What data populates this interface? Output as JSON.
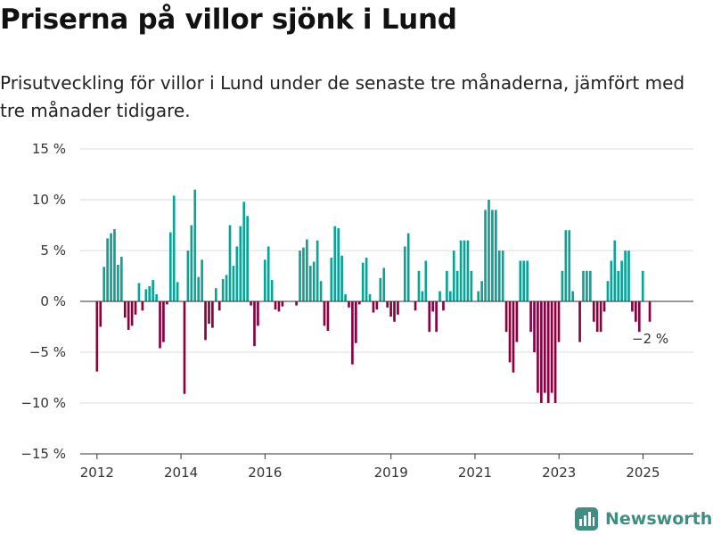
{
  "title": "Priserna på villor sjönk i Lund",
  "subtitle": "Prisutveckling för villor i Lund under de senaste tre månaderna, jämfört med tre månader tidigare.",
  "brand": "Newsworthy",
  "colors": {
    "positive": "#0aa396",
    "negative": "#8c0040",
    "brand": "#3e8e84"
  },
  "chart_data": {
    "type": "bar",
    "unit": "%",
    "ylim": [
      -15,
      15
    ],
    "yticks": [
      {
        "value": 15,
        "label": "15 %"
      },
      {
        "value": 10,
        "label": "10 %"
      },
      {
        "value": 5,
        "label": "5 %"
      },
      {
        "value": 0,
        "label": "0 %"
      },
      {
        "value": -5,
        "label": "−5 %"
      },
      {
        "value": -10,
        "label": "−10 %"
      },
      {
        "value": -15,
        "label": "−15 %"
      }
    ],
    "xlim": [
      2011.6,
      2026.2
    ],
    "xticks": [
      {
        "value": 2012,
        "label": "2012"
      },
      {
        "value": 2014,
        "label": "2014"
      },
      {
        "value": 2016,
        "label": "2016"
      },
      {
        "value": 2019,
        "label": "2019"
      },
      {
        "value": 2021,
        "label": "2021"
      },
      {
        "value": 2023,
        "label": "2023"
      },
      {
        "value": 2025,
        "label": "2025"
      }
    ],
    "grid": true,
    "legend": "none",
    "start": 2012.0,
    "step": 0.0833,
    "values": [
      -6.9,
      -2.5,
      3.4,
      6.2,
      6.7,
      7.1,
      3.6,
      4.4,
      -1.6,
      -2.8,
      -2.4,
      -1.3,
      1.8,
      -0.9,
      1.2,
      1.5,
      2.1,
      0.7,
      -4.6,
      -4.0,
      -0.3,
      6.8,
      10.4,
      1.9,
      0,
      -9.1,
      5.0,
      7.5,
      11.0,
      2.4,
      4.1,
      -3.8,
      -2.2,
      -2.6,
      1.3,
      -0.9,
      2.2,
      2.6,
      7.5,
      3.5,
      5.4,
      7.4,
      9.8,
      8.4,
      -0.4,
      -4.4,
      -2.4,
      0,
      4.1,
      5.4,
      2.1,
      -0.8,
      -1.0,
      -0.5,
      0,
      0,
      0,
      -0.4,
      5.0,
      5.3,
      6.1,
      3.5,
      3.9,
      6.0,
      2.0,
      -2.4,
      -2.9,
      4.3,
      7.4,
      7.2,
      4.5,
      0.7,
      -0.6,
      -6.2,
      -4.1,
      -0.3,
      3.8,
      4.3,
      0.7,
      -1.1,
      -0.8,
      2.3,
      3.3,
      -0.6,
      -1.5,
      -2.0,
      -1.3,
      0,
      5.4,
      6.7,
      0,
      -0.9,
      3.0,
      1.0,
      4.0,
      -3.0,
      -1.0,
      -3.0,
      1.0,
      -0.9,
      3.0,
      1.0,
      5.0,
      3.0,
      6.0,
      6.0,
      6.0,
      3.0,
      0,
      1.0,
      2.0,
      9.0,
      10.0,
      9.0,
      9.0,
      5.0,
      5.0,
      -3.0,
      -6.0,
      -7.0,
      -4.0,
      4.0,
      4.0,
      4.0,
      -3.0,
      -5.0,
      -9.0,
      -10.0,
      -9.0,
      -10.0,
      -9.0,
      -10.0,
      -4.0,
      3.0,
      7.0,
      7.0,
      1.0,
      0,
      -4.0,
      3.0,
      3.0,
      3.0,
      -2.0,
      -3.0,
      -3.0,
      -1.0,
      2.0,
      4.0,
      6.0,
      3.0,
      4.0,
      5.0,
      5.0,
      -1.0,
      -2.0,
      -3.0,
      3.0,
      0,
      -2.0
    ],
    "last_label": "−2 %"
  }
}
